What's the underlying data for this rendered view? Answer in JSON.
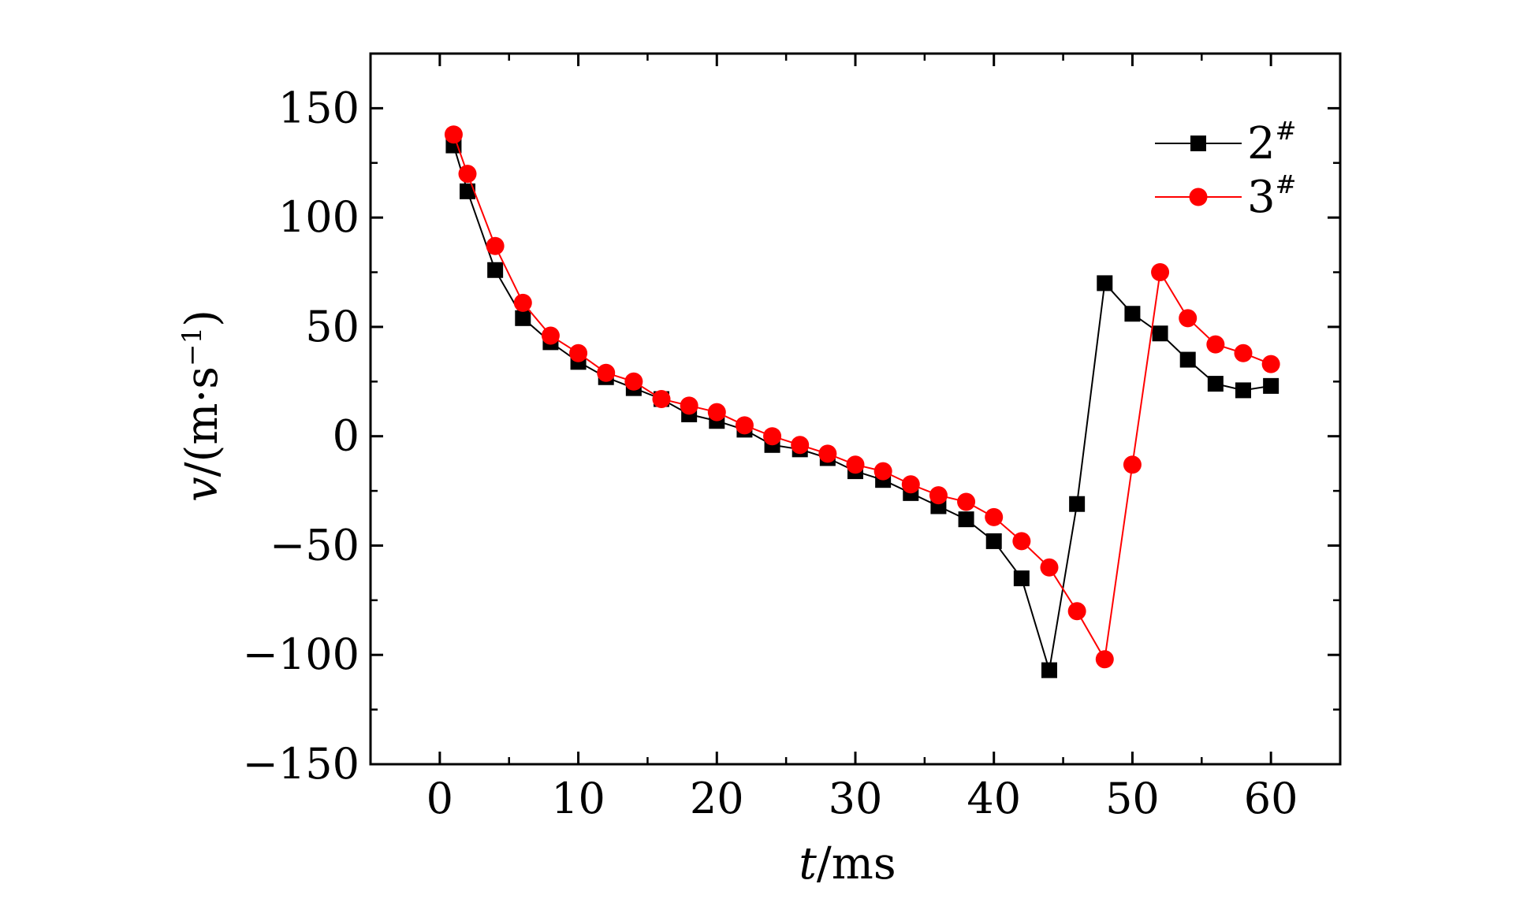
{
  "chart_data": {
    "type": "line",
    "xlabel_italic": "t",
    "xlabel_rest": "/ms",
    "ylabel_italic": "v",
    "ylabel_rest": "/(m·s",
    "ylabel_sup": "−1",
    "ylabel_close": ")",
    "xlim": [
      -5,
      65
    ],
    "ylim": [
      -150,
      175
    ],
    "x_ticks": [
      0,
      10,
      20,
      30,
      40,
      50,
      60
    ],
    "x_tick_labels": [
      "0",
      "10",
      "20",
      "30",
      "40",
      "50",
      "60"
    ],
    "y_ticks": [
      -150,
      -100,
      -50,
      0,
      50,
      100,
      150
    ],
    "y_tick_labels": [
      "−150",
      "−100",
      "−50",
      "0",
      "50",
      "100",
      "150"
    ],
    "grid": false,
    "legend_position": "top-right",
    "series": [
      {
        "name": "2",
        "name_sup": "#",
        "color": "#000000",
        "marker": "square",
        "x": [
          1,
          2,
          4,
          6,
          8,
          10,
          12,
          14,
          16,
          18,
          20,
          22,
          24,
          26,
          28,
          30,
          32,
          34,
          36,
          38,
          40,
          42,
          44,
          46,
          48,
          50,
          52,
          54,
          56,
          58,
          60
        ],
        "y": [
          133,
          112,
          76,
          54,
          43,
          34,
          27,
          22,
          17,
          10,
          7,
          3,
          -4,
          -6,
          -10,
          -16,
          -20,
          -26,
          -32,
          -38,
          -48,
          -65,
          -107,
          -31,
          70,
          56,
          47,
          35,
          24,
          21,
          23
        ]
      },
      {
        "name": "3",
        "name_sup": "#",
        "color": "#ff0000",
        "marker": "circle",
        "x": [
          1,
          2,
          4,
          6,
          8,
          10,
          12,
          14,
          16,
          18,
          20,
          22,
          24,
          26,
          28,
          30,
          32,
          34,
          36,
          38,
          40,
          42,
          44,
          46,
          48,
          50,
          52,
          54,
          56,
          58,
          60
        ],
        "y": [
          138,
          120,
          87,
          61,
          46,
          38,
          29,
          25,
          17,
          14,
          11,
          5,
          0,
          -4,
          -8,
          -13,
          -16,
          -22,
          -27,
          -30,
          -37,
          -48,
          -60,
          -80,
          -102,
          -13,
          75,
          54,
          42,
          38,
          33
        ]
      }
    ]
  }
}
